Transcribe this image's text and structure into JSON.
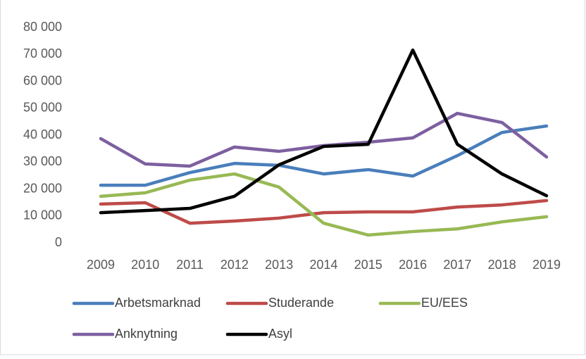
{
  "chart_data": {
    "type": "line",
    "categories": [
      "2009",
      "2010",
      "2011",
      "2012",
      "2013",
      "2014",
      "2015",
      "2016",
      "2017",
      "2018",
      "2019"
    ],
    "series": [
      {
        "name": "Arbetsmarknad",
        "color": "#4a7ebb",
        "values": [
          21400,
          21400,
          26100,
          29500,
          28800,
          25600,
          27200,
          24800,
          32400,
          41000,
          43400
        ]
      },
      {
        "name": "Studerande",
        "color": "#be4b48",
        "values": [
          14400,
          14900,
          7300,
          8100,
          9200,
          11200,
          11500,
          11500,
          13300,
          14100,
          15700
        ]
      },
      {
        "name": "EU/EES",
        "color": "#98b954",
        "values": [
          17300,
          18600,
          23300,
          25600,
          20700,
          7300,
          2900,
          4200,
          5200,
          7800,
          9700
        ]
      },
      {
        "name": "Anknytning",
        "color": "#7d60a0",
        "values": [
          38700,
          29300,
          28500,
          35600,
          34000,
          36100,
          37400,
          39000,
          48100,
          44700,
          31900
        ]
      },
      {
        "name": "Asyl",
        "color": "#000000",
        "values": [
          11200,
          12000,
          12800,
          17300,
          29000,
          35800,
          36600,
          71600,
          36600,
          25600,
          17500
        ]
      }
    ],
    "ylim": [
      0,
      80000
    ],
    "yticks": [
      0,
      {
        "value": 10000,
        "label": "10 000"
      },
      {
        "value": 20000,
        "label": "20 000"
      },
      {
        "value": 30000,
        "label": "30 000"
      },
      {
        "value": 40000,
        "label": "40 000"
      },
      {
        "value": 50000,
        "label": "50 000"
      },
      {
        "value": 60000,
        "label": "60 000"
      },
      {
        "value": 70000,
        "label": "70 000"
      },
      {
        "value": 80000,
        "label": "80 000"
      }
    ],
    "grid": false,
    "legend": "bottom"
  }
}
